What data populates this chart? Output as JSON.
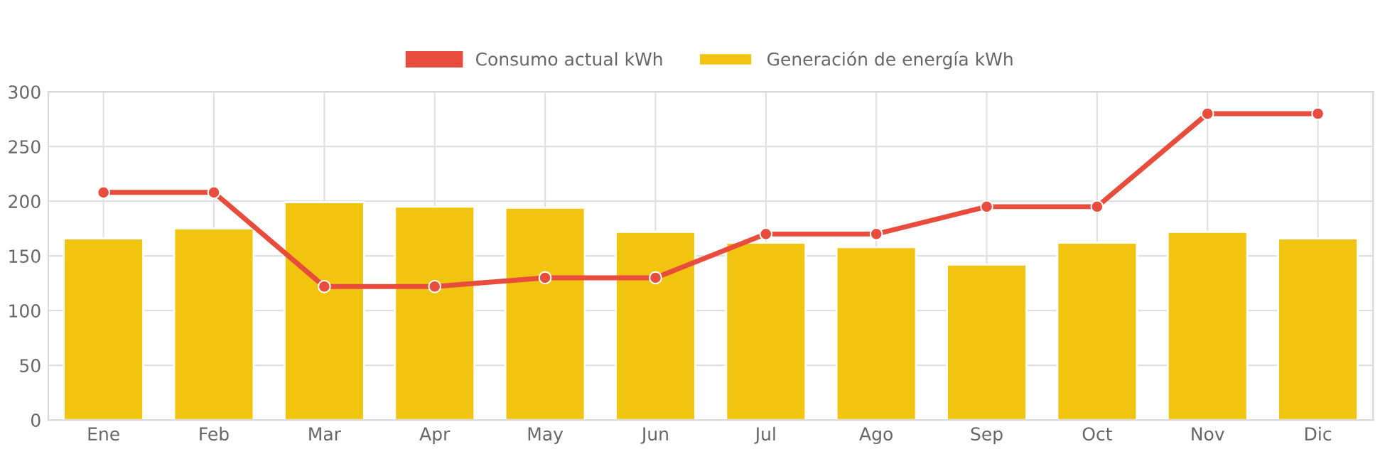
{
  "chart_data": {
    "type": "bar",
    "categories": [
      "Ene",
      "Feb",
      "Mar",
      "Apr",
      "May",
      "Jun",
      "Jul",
      "Ago",
      "Sep",
      "Oct",
      "Nov",
      "Dic"
    ],
    "series": [
      {
        "name": "Consumo actual kWh",
        "type": "line",
        "color": "#e74c3c",
        "values": [
          208,
          208,
          122,
          122,
          130,
          130,
          170,
          170,
          195,
          195,
          280,
          280
        ]
      },
      {
        "name": "Generación de energía kWh",
        "color": "#f1c40f",
        "values": [
          166,
          175,
          199,
          195,
          194,
          172,
          162,
          158,
          142,
          162,
          172,
          166
        ]
      }
    ],
    "ylim": [
      0,
      300
    ],
    "yticks": [
      0,
      50,
      100,
      150,
      200,
      250,
      300
    ],
    "grid": true,
    "legend": "top",
    "marker": "circle",
    "line_style": "solid"
  }
}
